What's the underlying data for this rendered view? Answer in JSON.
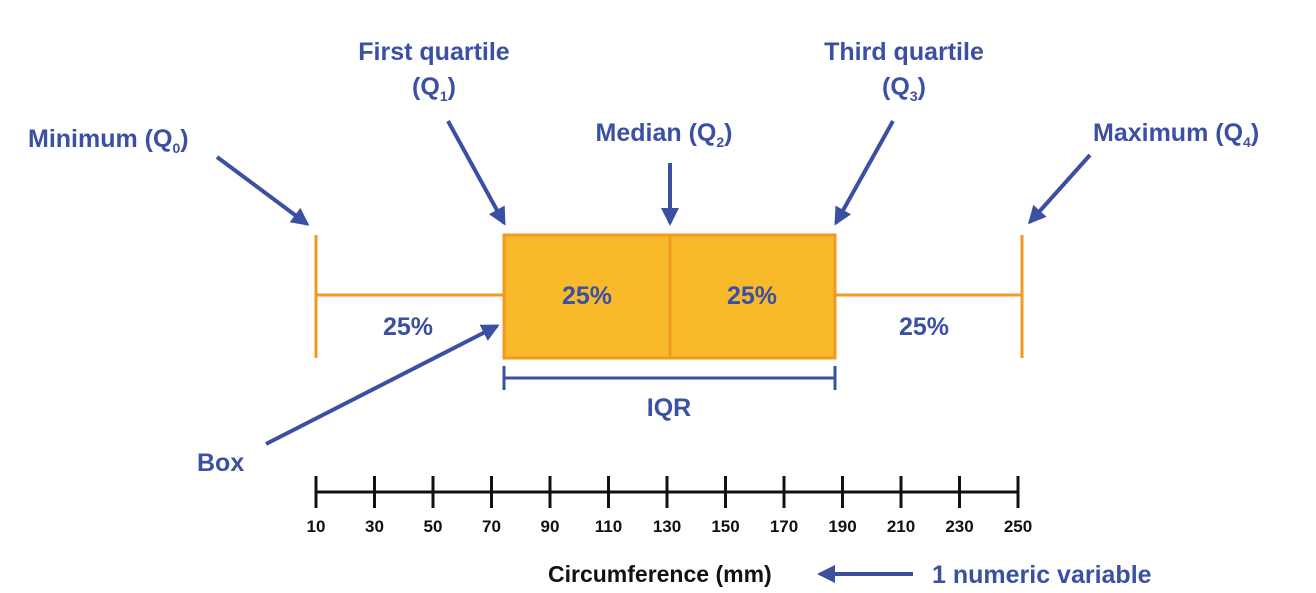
{
  "colors": {
    "label_blue": "#3b50a3",
    "box_fill": "#f8b92a",
    "box_stroke": "#f29a1f",
    "whisker": "#f29a1f",
    "axis": "#111111"
  },
  "labels": {
    "minimum": {
      "text": "Minimum (Q",
      "sub": "0",
      "close": ")"
    },
    "first_quartile_line1": "First quartile",
    "first_quartile_line2": {
      "text": "(Q",
      "sub": "1",
      "close": ")"
    },
    "median": {
      "text": "Median (Q",
      "sub": "2",
      "close": ")"
    },
    "third_quartile_line1": "Third quartile",
    "third_quartile_line2": {
      "text": "(Q",
      "sub": "3",
      "close": ")"
    },
    "maximum": {
      "text": "Maximum (Q",
      "sub": "4",
      "close": ")"
    },
    "box": "Box",
    "iqr": "IQR",
    "numeric_variable": "1 numeric variable"
  },
  "percentages": {
    "lower_whisker": "25%",
    "lower_box": "25%",
    "upper_box": "25%",
    "upper_whisker": "25%"
  },
  "axis": {
    "title": "Circumference (mm)",
    "ticks": [
      "10",
      "30",
      "50",
      "70",
      "90",
      "110",
      "130",
      "150",
      "170",
      "190",
      "210",
      "230",
      "250"
    ]
  },
  "boxplot": {
    "minimum": 10,
    "q1": 73,
    "median": 130,
    "q3": 187,
    "maximum": 252
  }
}
